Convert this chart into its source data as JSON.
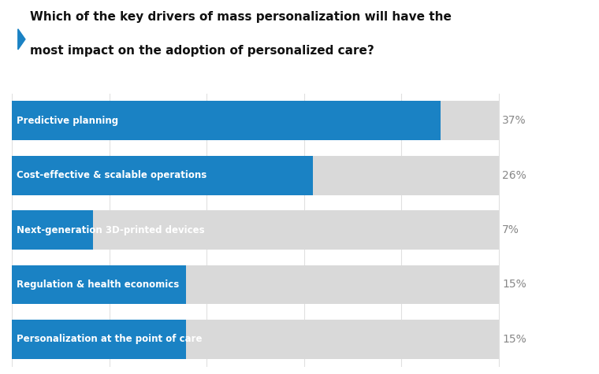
{
  "title_line1": "Which of the key drivers of mass personalization will have the",
  "title_line2": "most impact on the adoption of personalized care?",
  "categories": [
    "Predictive planning",
    "Cost-effective & scalable operations",
    "Next-generation 3D-printed devices",
    "Regulation & health economics",
    "Personalization at the point of care"
  ],
  "values": [
    37,
    26,
    7,
    15,
    15
  ],
  "display_max": 42,
  "bar_color": "#1a82c4",
  "bg_bar_color": "#d9d9d9",
  "label_color": "#ffffff",
  "pct_color": "#888888",
  "title_color": "#111111",
  "background_color": "#ffffff",
  "bar_height": 0.72,
  "label_fontsize": 8.5,
  "pct_fontsize": 10,
  "title_fontsize": 11,
  "accent_color": "#1a82c4",
  "grid_color": "#e0e0e0"
}
